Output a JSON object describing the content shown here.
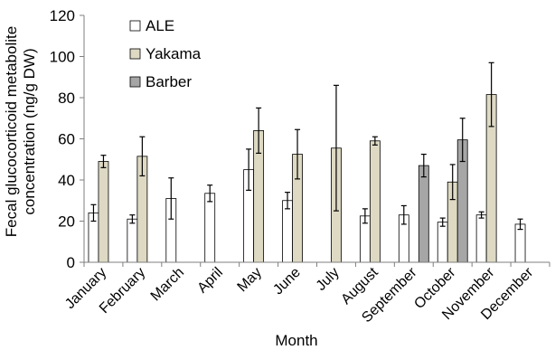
{
  "chart_data": {
    "type": "bar",
    "title": "",
    "xlabel": "Month",
    "ylabel_lines": [
      "Fecal glucocorticoid metabolite",
      "concentration (ng/g DW)"
    ],
    "ylim": [
      0,
      120
    ],
    "yticks": [
      0,
      20,
      40,
      60,
      80,
      100,
      120
    ],
    "legend_position": "top-left",
    "categories": [
      "January",
      "February",
      "March",
      "April",
      "May",
      "June",
      "July",
      "August",
      "September",
      "October",
      "November",
      "December"
    ],
    "series": [
      {
        "name": "ALE",
        "color": "#ffffff",
        "values": [
          24,
          21,
          31,
          33.5,
          45,
          30,
          null,
          22.5,
          23,
          19.5,
          23,
          18.5
        ],
        "errors": [
          4,
          2,
          10,
          4,
          10,
          4,
          null,
          3.5,
          4.5,
          2,
          1.5,
          2.5
        ]
      },
      {
        "name": "Yakama",
        "color": "#ddd9c3",
        "values": [
          49,
          51.5,
          null,
          null,
          64,
          52.5,
          55.5,
          59,
          null,
          39,
          81.5,
          null
        ],
        "errors": [
          3,
          9.5,
          null,
          null,
          11,
          12,
          30.5,
          2,
          null,
          8.5,
          15.5,
          null
        ]
      },
      {
        "name": "Barber",
        "color": "#a6a6a6",
        "values": [
          null,
          null,
          null,
          null,
          null,
          null,
          null,
          null,
          47,
          59.5,
          null,
          null
        ],
        "errors": [
          null,
          null,
          null,
          null,
          null,
          null,
          null,
          null,
          5.5,
          10.5,
          null,
          null
        ]
      }
    ]
  }
}
